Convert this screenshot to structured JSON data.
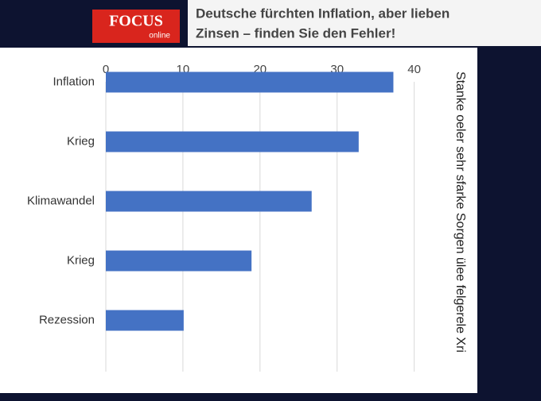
{
  "header": {
    "logo": "FOCUS",
    "logo_sub": "online",
    "title_lines": [
      "Deutsche fürchten Inflation, aber lieben",
      "Zinsen – finden Sie den Fehler!"
    ]
  },
  "chart_data": {
    "type": "bar",
    "orientation": "horizontal",
    "axis_label": "Stanke oeler sehr sfarke Sorgen ülee felgerele Xri",
    "categories": [
      "Inflation",
      "Krieg",
      "Klimawandel",
      "Krieg",
      "Rezession"
    ],
    "values": [
      37.3,
      32.8,
      26.7,
      18.9,
      10.1
    ],
    "color": "#4472c4",
    "xlim": [
      0,
      42
    ],
    "xticks": [
      0,
      10,
      20,
      30,
      40
    ],
    "grid": true
  }
}
